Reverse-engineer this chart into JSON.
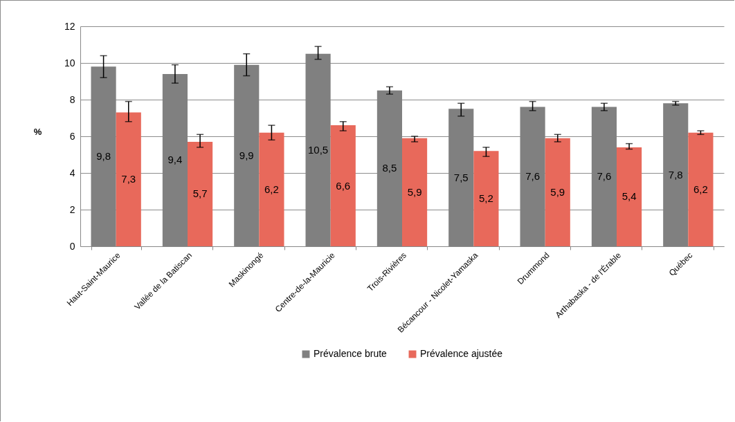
{
  "chart_data": {
    "type": "bar",
    "ylabel": "%",
    "categories": [
      "Haut-Saint-Maurice",
      "Vallée de la Batiscan",
      "Maskinongé",
      "Centre-de-la-Mauricie",
      "Trois-Rivières",
      "Bécancour - Nicolet-Yamaska",
      "Drummond",
      "Arthabaska - de l'Érable",
      "Québec"
    ],
    "series": [
      {
        "name": "Prévalence brute",
        "color": "#808080",
        "values": [
          9.8,
          9.4,
          9.9,
          10.5,
          8.5,
          7.5,
          7.6,
          7.6,
          7.8
        ],
        "value_labels": [
          "9,8",
          "9,4",
          "9,9",
          "10,5",
          "8,5",
          "7,5",
          "7,6",
          "7,6",
          "7,8"
        ],
        "errors": [
          [
            9.2,
            10.4
          ],
          [
            8.9,
            9.9
          ],
          [
            9.3,
            10.5
          ],
          [
            10.2,
            10.9
          ],
          [
            8.3,
            8.7
          ],
          [
            7.1,
            7.8
          ],
          [
            7.4,
            7.9
          ],
          [
            7.4,
            7.8
          ],
          [
            7.7,
            7.9
          ]
        ]
      },
      {
        "name": "Prévalence ajustée",
        "color": "#e8695b",
        "values": [
          7.3,
          5.7,
          6.2,
          6.6,
          5.9,
          5.2,
          5.9,
          5.4,
          6.2
        ],
        "value_labels": [
          "7,3",
          "5,7",
          "6,2",
          "6,6",
          "5,9",
          "5,2",
          "5,9",
          "5,4",
          "6,2"
        ],
        "errors": [
          [
            6.8,
            7.9
          ],
          [
            5.4,
            6.1
          ],
          [
            5.8,
            6.6
          ],
          [
            6.3,
            6.8
          ],
          [
            5.7,
            6.0
          ],
          [
            4.9,
            5.4
          ],
          [
            5.7,
            6.1
          ],
          [
            5.3,
            5.6
          ],
          [
            6.1,
            6.3
          ]
        ]
      }
    ],
    "ylim": [
      0,
      12
    ],
    "yticks": [
      0,
      2,
      4,
      6,
      8,
      10,
      12
    ],
    "grid": "y",
    "legend": "bottom"
  }
}
